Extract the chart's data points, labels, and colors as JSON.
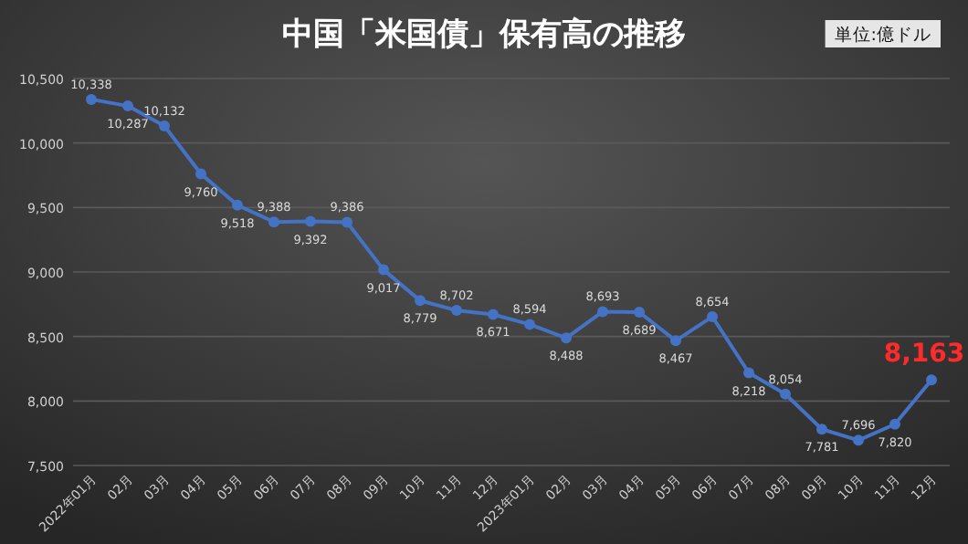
{
  "chart_data": {
    "type": "line",
    "title": "中国「米国債」保有高の推移",
    "annotations": [
      "単位:億ドル"
    ],
    "categories": [
      "2022年01月",
      "02月",
      "03月",
      "04月",
      "05月",
      "06月",
      "07月",
      "08月",
      "09月",
      "10月",
      "11月",
      "12月",
      "2023年01月",
      "02月",
      "03月",
      "04月",
      "05月",
      "06月",
      "07月",
      "08月",
      "09月",
      "10月",
      "11月",
      "12月"
    ],
    "series": [
      {
        "color": "#4472c4",
        "values": [
          10338,
          10287,
          10132,
          9760,
          9518,
          9388,
          9392,
          9386,
          9017,
          8779,
          8702,
          8671,
          8594,
          8488,
          8693,
          8689,
          8467,
          8654,
          8218,
          8054,
          7781,
          7696,
          7820,
          8163
        ],
        "value_labels": [
          "10,338",
          "10,287",
          "10,132",
          "9,760",
          "9,518",
          "9,388",
          "9,392",
          "9,386",
          "9,017",
          "8,779",
          "8,702",
          "8,671",
          "8,594",
          "8,488",
          "8,693",
          "8,689",
          "8,467",
          "8,654",
          "8,218",
          "8,054",
          "7,781",
          "7,696",
          "7,820",
          "8,163"
        ]
      }
    ],
    "ylim": [
      7500,
      10500
    ],
    "yticks": [
      {
        "value": 7500,
        "label": "7,500"
      },
      {
        "value": 8000,
        "label": "8,000"
      },
      {
        "value": 8500,
        "label": "8,500"
      },
      {
        "value": 9000,
        "label": "9,000"
      },
      {
        "value": 9500,
        "label": "9,500"
      },
      {
        "value": 10000,
        "label": "10,000"
      },
      {
        "value": 10500,
        "label": "10,500"
      }
    ],
    "grid": "y",
    "marker": "circle",
    "line_style": "solid"
  }
}
